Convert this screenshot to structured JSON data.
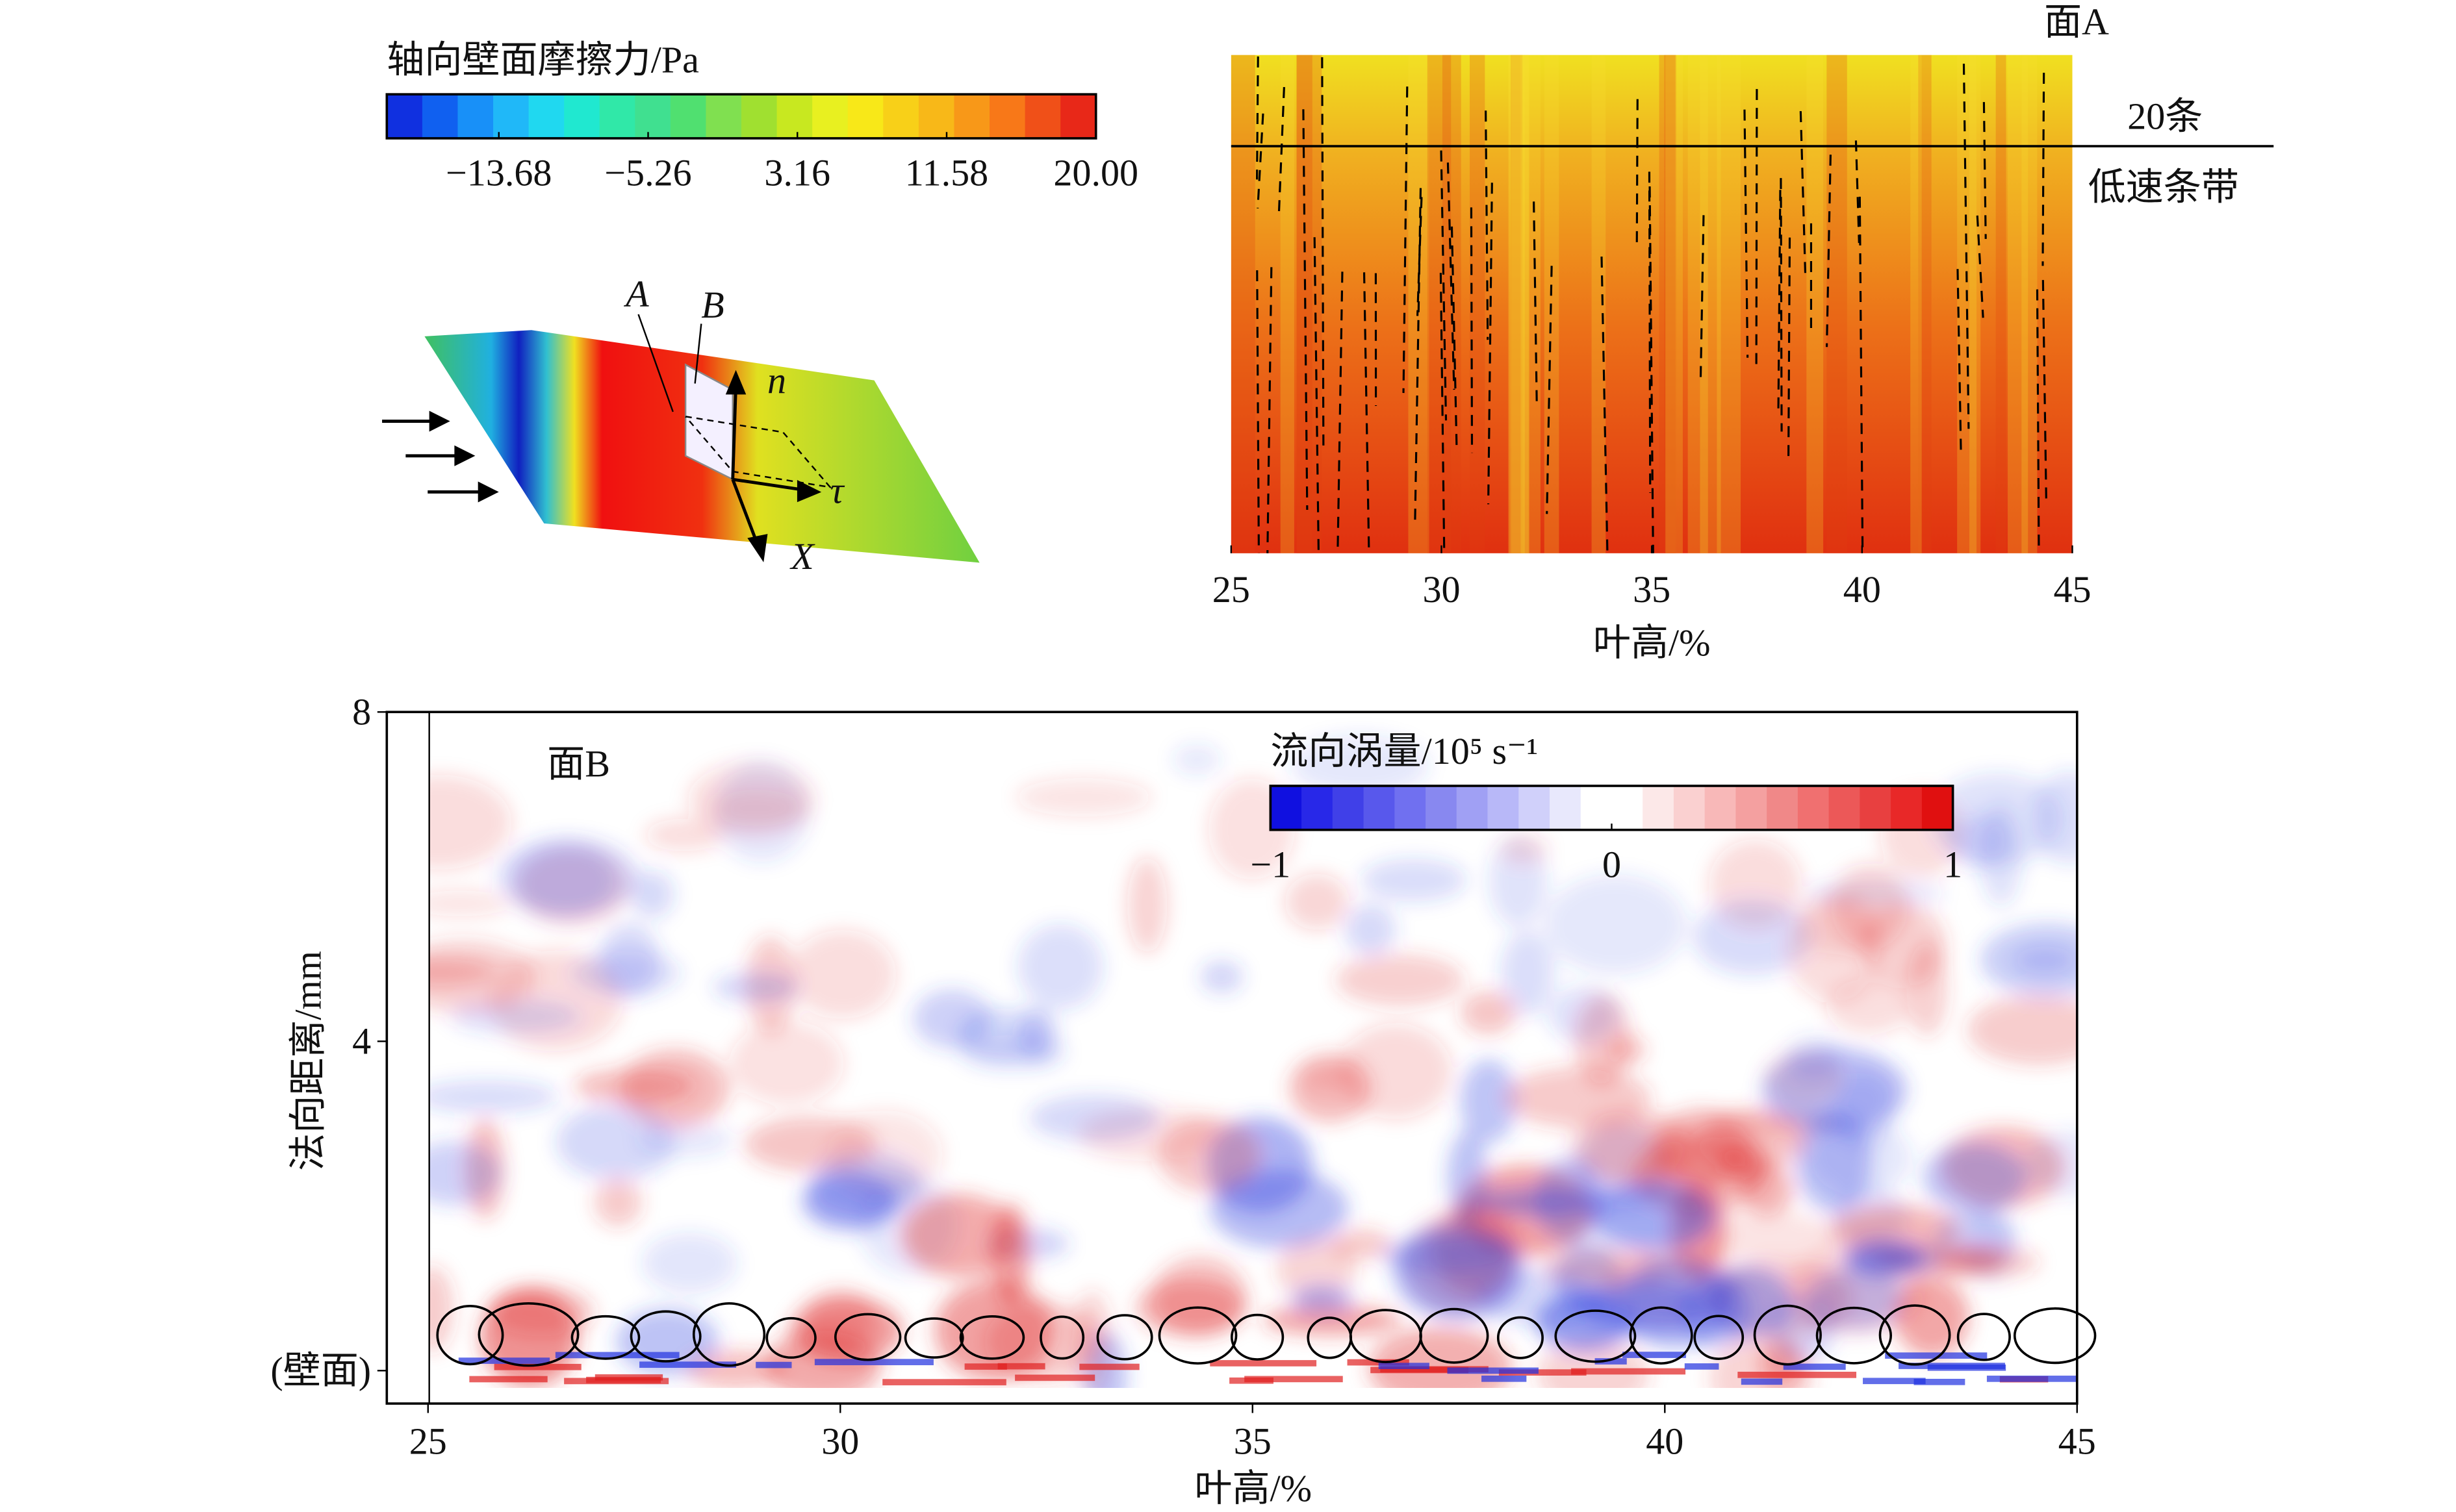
{
  "chart_data": [
    {
      "type": "colorbar",
      "title": "轴向壁面摩擦力/Pa",
      "lim": [
        -20,
        20
      ],
      "colormap": "jet",
      "ticks": [
        {
          "value": -13.68,
          "label": "−13.68"
        },
        {
          "value": -5.26,
          "label": "−5.26"
        },
        3.16,
        11.58,
        {
          "value": 20,
          "label": "20.00"
        }
      ]
    },
    {
      "type": "diagram",
      "labels": [
        "A",
        "B",
        "n",
        "τ",
        "X"
      ]
    },
    {
      "type": "contour",
      "title": "面A",
      "xlabel": "叶高/%",
      "xlim": [
        25,
        45
      ],
      "xticks": [
        25,
        30,
        35,
        40,
        45
      ],
      "annotations": [
        "20条",
        "低速条带"
      ]
    },
    {
      "type": "contour",
      "title": "面B",
      "xlabel": "叶高/%",
      "ylabel": "法向距离/mm",
      "xlim": [
        24.5,
        45
      ],
      "ylim": [
        -0.4,
        8
      ],
      "xticks": [
        25,
        30,
        35,
        40,
        45
      ],
      "yticks": [
        {
          "value": 0,
          "label": "(壁面)"
        },
        4,
        8
      ],
      "colorbar": {
        "title": "流向涡量/10⁵ s⁻¹",
        "lim": [
          -1,
          1
        ],
        "ticks": [
          {
            "value": -1,
            "label": "−1"
          },
          0,
          1
        ],
        "colormap": "bwr"
      }
    }
  ]
}
